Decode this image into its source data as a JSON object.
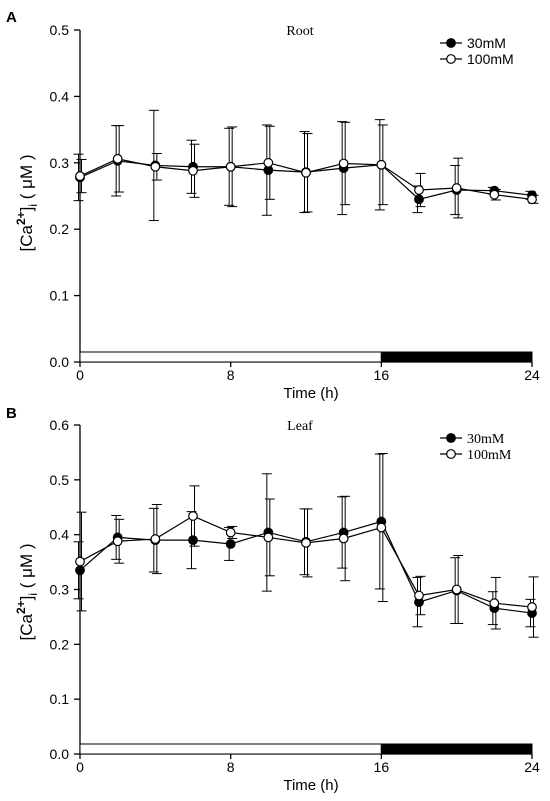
{
  "chart_data": [
    {
      "panel": "A",
      "title": "Root",
      "type": "line",
      "xlabel": "Time (h)",
      "ylabel_parts": [
        "[Ca",
        "2+",
        "]",
        "i",
        " ( μM )"
      ],
      "xlim": [
        0,
        24
      ],
      "ylim": [
        0,
        0.5
      ],
      "xticks": [
        0,
        8,
        16,
        24
      ],
      "yticks": [
        0.0,
        0.1,
        0.2,
        0.3,
        0.4,
        0.5
      ],
      "ytick_labels": [
        "0.0",
        "0.1",
        "0.2",
        "0.3",
        "0.4",
        "0.5"
      ],
      "x": [
        0,
        2,
        4,
        6,
        8,
        10,
        12,
        14,
        16,
        18,
        20,
        22,
        24
      ],
      "series": [
        {
          "name": "30mM",
          "marker": "filled",
          "values": [
            0.278,
            0.303,
            0.296,
            0.294,
            0.294,
            0.289,
            0.286,
            0.292,
            0.297,
            0.245,
            0.259,
            0.258,
            0.251
          ],
          "errors": [
            0.035,
            0.053,
            0.083,
            0.04,
            0.058,
            0.068,
            0.061,
            0.07,
            0.068,
            0.02,
            0.037,
            0.005,
            0.006
          ]
        },
        {
          "name": "100mM",
          "marker": "open",
          "values": [
            0.28,
            0.306,
            0.294,
            0.288,
            0.294,
            0.3,
            0.285,
            0.299,
            0.297,
            0.259,
            0.262,
            0.252,
            0.245
          ],
          "errors": [
            0.025,
            0.05,
            0.02,
            0.04,
            0.06,
            0.055,
            0.059,
            0.062,
            0.06,
            0.025,
            0.045,
            0.008,
            0.006
          ]
        }
      ],
      "light_bar": {
        "light": [
          0,
          16
        ],
        "dark": [
          16,
          24
        ]
      }
    },
    {
      "panel": "B",
      "title": "Leaf",
      "type": "line",
      "xlabel": "Time (h)",
      "ylabel_parts": [
        "[Ca",
        "2+",
        "]",
        "i",
        " ( μM )"
      ],
      "xlim": [
        0,
        24
      ],
      "ylim": [
        0,
        0.6
      ],
      "xticks": [
        0,
        8,
        16,
        24
      ],
      "yticks": [
        0.0,
        0.1,
        0.2,
        0.3,
        0.4,
        0.5,
        0.6
      ],
      "ytick_labels": [
        "0.0",
        "0.1",
        "0.2",
        "0.3",
        "0.4",
        "0.5",
        "0.6"
      ],
      "x": [
        0,
        2,
        4,
        6,
        8,
        10,
        12,
        14,
        16,
        18,
        20,
        22,
        24
      ],
      "series": [
        {
          "name": "30mM",
          "marker": "filled",
          "values": [
            0.335,
            0.395,
            0.39,
            0.39,
            0.383,
            0.404,
            0.387,
            0.404,
            0.424,
            0.277,
            0.298,
            0.266,
            0.257
          ],
          "errors": [
            0.052,
            0.04,
            0.058,
            0.052,
            0.03,
            0.107,
            0.06,
            0.065,
            0.123,
            0.045,
            0.06,
            0.03,
            0.025
          ]
        },
        {
          "name": "100mM",
          "marker": "open",
          "values": [
            0.351,
            0.388,
            0.392,
            0.434,
            0.404,
            0.395,
            0.385,
            0.393,
            0.413,
            0.289,
            0.3,
            0.275,
            0.268
          ],
          "errors": [
            0.09,
            0.04,
            0.063,
            0.055,
            0.011,
            0.07,
            0.062,
            0.077,
            0.135,
            0.035,
            0.062,
            0.047,
            0.055
          ]
        }
      ],
      "light_bar": {
        "light": [
          0,
          16
        ],
        "dark": [
          16,
          24
        ]
      }
    }
  ]
}
